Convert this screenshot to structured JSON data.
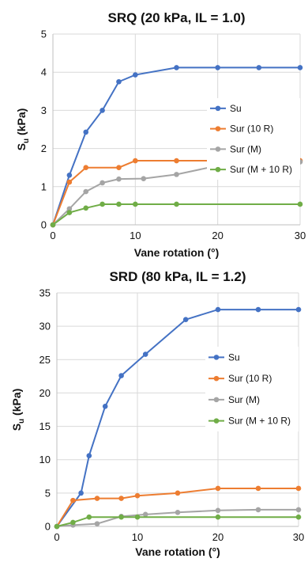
{
  "chart_data": [
    {
      "type": "line",
      "title": "SRQ (20 kPa, IL = 1.0)",
      "xlabel": "Vane rotation (°)",
      "ylabel_main": "S",
      "ylabel_sub": "u",
      "ylabel_unit": " (kPa)",
      "xlim": [
        0,
        30
      ],
      "ylim": [
        0,
        5
      ],
      "xticks": [
        0,
        10,
        20,
        30
      ],
      "yticks": [
        0,
        1,
        2,
        3,
        4,
        5
      ],
      "grid": true,
      "legend_position": "right",
      "series": [
        {
          "name": "Su",
          "color": "#4472c4",
          "x": [
            0,
            2,
            4,
            6,
            8,
            10,
            15,
            20,
            25,
            30
          ],
          "y": [
            0,
            1.3,
            2.43,
            3.0,
            3.75,
            3.93,
            4.12,
            4.12,
            4.12,
            4.12
          ]
        },
        {
          "name": "Sur (10 R)",
          "color": "#ed7d31",
          "x": [
            0,
            2,
            4,
            8,
            10,
            15,
            20,
            30
          ],
          "y": [
            0,
            1.12,
            1.5,
            1.5,
            1.68,
            1.68,
            1.68,
            1.68
          ]
        },
        {
          "name": "Sur (M)",
          "color": "#a5a5a5",
          "x": [
            0,
            2,
            4,
            6,
            8,
            11,
            15,
            20,
            25,
            30
          ],
          "y": [
            0,
            0.42,
            0.87,
            1.1,
            1.2,
            1.21,
            1.32,
            1.55,
            1.65,
            1.65
          ]
        },
        {
          "name": "Sur (M + 10 R)",
          "color": "#70ad47",
          "x": [
            0,
            2,
            4,
            6,
            8,
            10,
            15,
            30
          ],
          "y": [
            0,
            0.32,
            0.44,
            0.54,
            0.54,
            0.54,
            0.54,
            0.54
          ]
        }
      ]
    },
    {
      "type": "line",
      "title": "SRD (80 kPa, IL = 1.2)",
      "xlabel": "Vane rotation (°)",
      "ylabel_main": "S",
      "ylabel_sub": "u",
      "ylabel_unit": " (kPa)",
      "xlim": [
        0,
        30
      ],
      "ylim": [
        0,
        35
      ],
      "xticks": [
        0,
        10,
        20,
        30
      ],
      "yticks": [
        0,
        5,
        10,
        15,
        20,
        25,
        30,
        35
      ],
      "grid": true,
      "legend_position": "right",
      "series": [
        {
          "name": "Su",
          "color": "#4472c4",
          "x": [
            0,
            3,
            4,
            6,
            8,
            11,
            16,
            20,
            25,
            30
          ],
          "y": [
            0,
            5.0,
            10.6,
            18.0,
            22.6,
            25.8,
            31.0,
            32.5,
            32.5,
            32.5
          ]
        },
        {
          "name": "Sur (10 R)",
          "color": "#ed7d31",
          "x": [
            0,
            2,
            5,
            8,
            10,
            15,
            20,
            25,
            30
          ],
          "y": [
            0,
            3.9,
            4.2,
            4.2,
            4.6,
            5.0,
            5.7,
            5.7,
            5.7
          ]
        },
        {
          "name": "Sur (M)",
          "color": "#a5a5a5",
          "x": [
            0,
            2,
            5,
            8,
            11,
            15,
            20,
            25,
            30
          ],
          "y": [
            0,
            0.2,
            0.4,
            1.5,
            1.8,
            2.1,
            2.4,
            2.5,
            2.5
          ]
        },
        {
          "name": "Sur (M + 10 R)",
          "color": "#70ad47",
          "x": [
            0,
            2,
            4,
            8,
            10,
            20,
            30
          ],
          "y": [
            0,
            0.6,
            1.4,
            1.4,
            1.4,
            1.4,
            1.4
          ]
        }
      ]
    }
  ]
}
